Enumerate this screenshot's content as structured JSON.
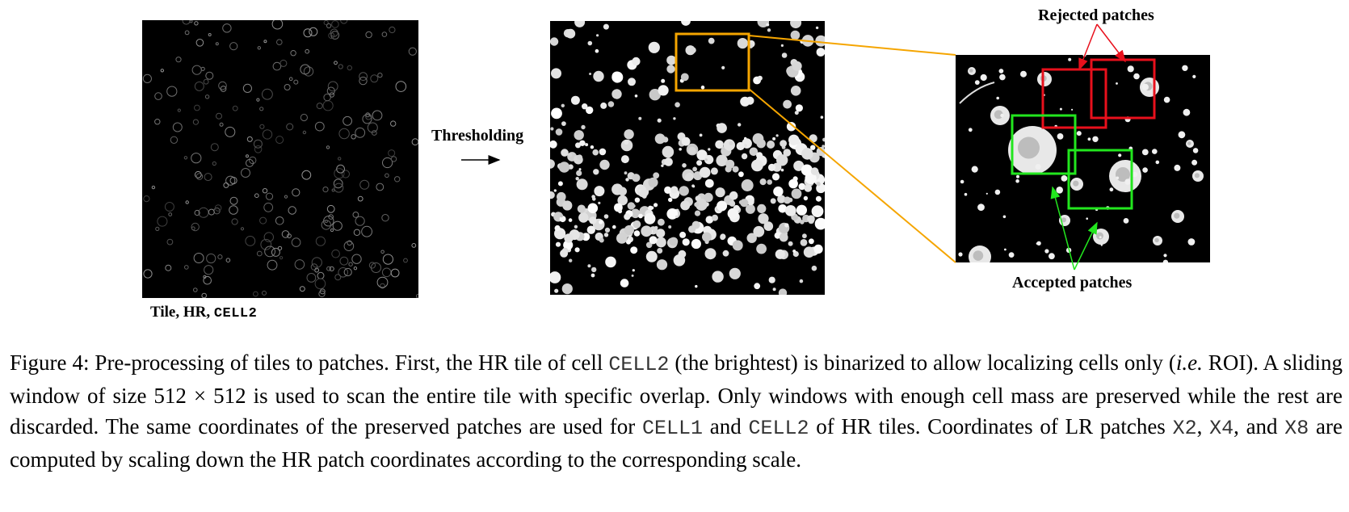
{
  "figure": {
    "tile_caption": {
      "tile": "Tile",
      "sep1": ", ",
      "hr": "HR",
      "sep2": ", ",
      "cell": "CELL2"
    },
    "arrow_label": "Thresholding",
    "rejected_label": "Rejected patches",
    "accepted_label": "Accepted patches",
    "colors": {
      "highlight": "#f5a500",
      "rejected": "#e8101c",
      "accepted": "#22e61e",
      "panel_bg": "#000000"
    },
    "icons": [
      "arrow-right-icon"
    ]
  },
  "caption": {
    "prefix": "Figure 4: ",
    "s1": "Pre-processing of tiles to patches. First, the HR tile of cell ",
    "cell2_a": "CELL2",
    "s2": " (the brightest) is binarized to allow localizing cells only (",
    "ie": "i.e.",
    "s3": " ROI). A sliding window of size 512 × 512 is used to scan the entire tile with specific overlap. Only windows with enough cell mass are preserved while the rest are discarded. The same coordinates of the preserved patches are used for ",
    "cell1": "CELL1",
    "and1": " and ",
    "cell2_b": "CELL2",
    "s4": " of HR tiles. Coordinates of LR patches ",
    "x2": "X2",
    "comma1": ", ",
    "x4": "X4",
    "and2": ", and ",
    "x8": "X8",
    "s5": " are computed by scaling down the HR patch coordinates according to the corresponding scale."
  }
}
